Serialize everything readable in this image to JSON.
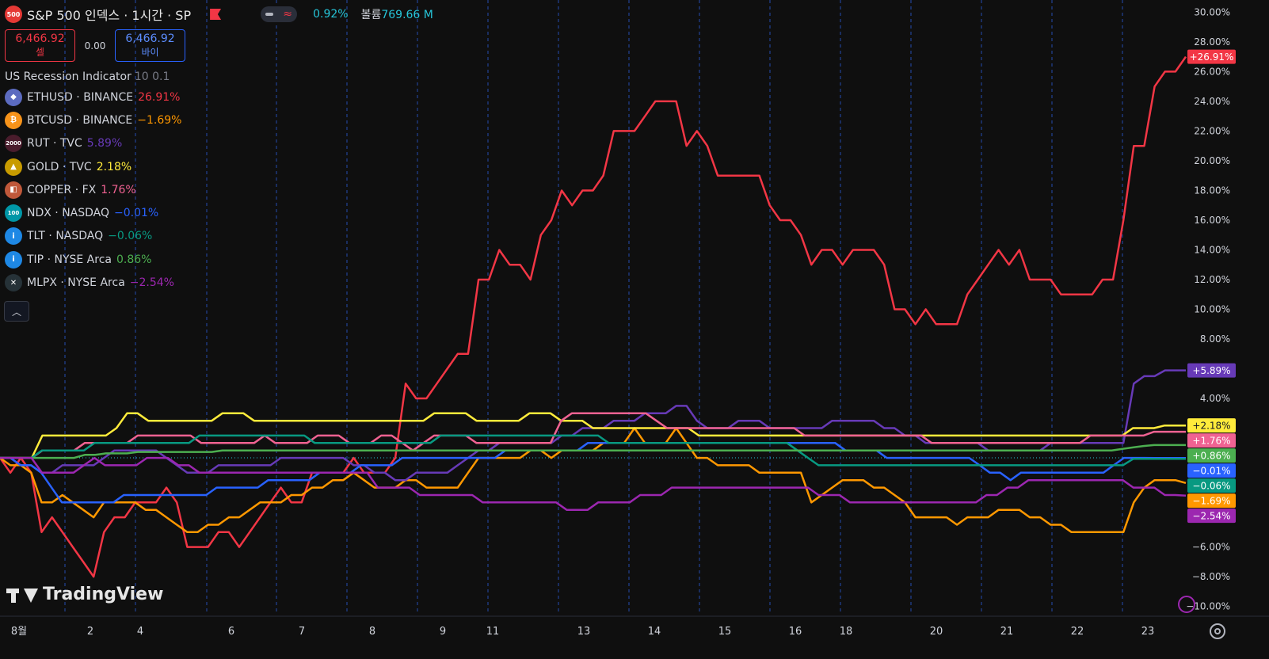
{
  "header": {
    "symbol_badge": "500",
    "title": "S&P 500 인덱스 · 1시간 · SP",
    "change_pct": "0.92%",
    "volume_label": "볼륨",
    "volume_value": "769.66 M"
  },
  "trade": {
    "sell_price": "6,466.92",
    "sell_label": "셀",
    "spread": "0.00",
    "buy_price": "6,466.92",
    "buy_label": "바이"
  },
  "indicator": {
    "name": "US Recession Indicator",
    "params": "10 0.1"
  },
  "logo_text": "TradingView",
  "chart_data": {
    "type": "line",
    "x_ticks": [
      "8월",
      "2",
      "4",
      "6",
      "7",
      "8",
      "9",
      "11",
      "13",
      "14",
      "15",
      "16",
      "18",
      "20",
      "21",
      "22",
      "23"
    ],
    "y_ticks": [
      "30.00%",
      "28.00%",
      "26.00%",
      "24.00%",
      "22.00%",
      "20.00%",
      "18.00%",
      "16.00%",
      "14.00%",
      "12.00%",
      "10.00%",
      "8.00%",
      "4.00%",
      "−6.00%",
      "−8.00%",
      "−10.00%"
    ],
    "ylim": [
      -10.5,
      30.5
    ],
    "y_unit": "%",
    "session_day_count": 17,
    "series": [
      {
        "symbol": "ETHUSD",
        "exchange": "BINANCE",
        "change": "26.91%",
        "badge": "+26.91%",
        "color": "#f23645",
        "icon_color": "#5c6bc0",
        "icon": "ethereum-icon",
        "icon_text": "◆",
        "values": [
          0,
          -1,
          0,
          -1,
          -5,
          -4,
          -5,
          -6,
          -7,
          -8,
          -5,
          -4,
          -4,
          -3,
          -3,
          -3,
          -2,
          -3,
          -6,
          -6,
          -6,
          -5,
          -5,
          -6,
          -5,
          -4,
          -3,
          -2,
          -3,
          -3,
          -1,
          -1,
          -1,
          -1,
          0,
          -1,
          -1,
          -1,
          0,
          5,
          4,
          4,
          5,
          6,
          7,
          7,
          12,
          12,
          14,
          13,
          13,
          12,
          15,
          16,
          18,
          17,
          18,
          18,
          19,
          22,
          22,
          22,
          23,
          24,
          24,
          24,
          21,
          22,
          21,
          19,
          19,
          19,
          19,
          19,
          17,
          16,
          16,
          15,
          13,
          14,
          14,
          13,
          14,
          14,
          14,
          13,
          10,
          10,
          9,
          10,
          9,
          9,
          9,
          11,
          12,
          13,
          14,
          13,
          14,
          12,
          12,
          12,
          11,
          11,
          11,
          11,
          12,
          12,
          16,
          21,
          21,
          25,
          26,
          26,
          27
        ]
      },
      {
        "symbol": "BTCUSD",
        "exchange": "BINANCE",
        "change": "−1.69%",
        "badge": "−1.69%",
        "color": "#ff9800",
        "icon_color": "#f7931a",
        "icon": "bitcoin-icon",
        "icon_text": "₿",
        "values": [
          0,
          -0.5,
          -0.5,
          -1,
          -3,
          -3,
          -2.5,
          -3,
          -3.5,
          -4,
          -3,
          -3,
          -3,
          -3,
          -3.5,
          -3.5,
          -4,
          -4.5,
          -5,
          -5,
          -4.5,
          -4.5,
          -4,
          -4,
          -3.5,
          -3,
          -3,
          -3,
          -2.5,
          -2.5,
          -2,
          -2,
          -1.5,
          -1.5,
          -1,
          -1.5,
          -2,
          -2,
          -2,
          -1.5,
          -1.5,
          -2,
          -2,
          -2,
          -2,
          -1,
          0,
          0,
          0,
          0,
          0,
          0.5,
          0.5,
          0,
          0.5,
          0.5,
          0.5,
          0.5,
          1,
          1,
          1,
          2,
          1,
          1,
          1,
          2,
          1,
          0,
          0,
          -0.5,
          -0.5,
          -0.5,
          -0.5,
          -1,
          -1,
          -1,
          -1,
          -1,
          -3,
          -2.5,
          -2,
          -1.5,
          -1.5,
          -1.5,
          -2,
          -2,
          -2.5,
          -3,
          -4,
          -4,
          -4,
          -4,
          -4.5,
          -4,
          -4,
          -4,
          -3.5,
          -3.5,
          -3.5,
          -4,
          -4,
          -4.5,
          -4.5,
          -5,
          -5,
          -5,
          -5,
          -5,
          -5,
          -3,
          -2,
          -1.5,
          -1.5,
          -1.5,
          -1.69
        ]
      },
      {
        "symbol": "RUT",
        "exchange": "TVC",
        "change": "5.89%",
        "badge": "+5.89%",
        "color": "#673ab7",
        "icon_color": "#4a1c2c",
        "icon": "rut-index-icon",
        "icon_text": "2000",
        "values": [
          0,
          0,
          -0.5,
          -0.5,
          -1,
          -1,
          -0.5,
          -0.5,
          -0.5,
          -0.5,
          0,
          0.5,
          0.5,
          0.5,
          0.5,
          0.5,
          0,
          -0.5,
          -1,
          -1,
          -1,
          -0.5,
          -0.5,
          -0.5,
          -0.5,
          -0.5,
          -0.5,
          0,
          0,
          0,
          0,
          0,
          0,
          0,
          -0.5,
          -0.5,
          -1,
          -1,
          -1.5,
          -1.5,
          -1,
          -1,
          -1,
          -1,
          -0.5,
          0,
          0.5,
          0.5,
          1,
          1,
          1,
          1,
          1,
          1,
          1.5,
          1.5,
          2,
          2,
          2,
          2.5,
          2.5,
          2.5,
          3,
          3,
          3,
          3.5,
          3.5,
          2.5,
          2,
          2,
          2,
          2.5,
          2.5,
          2.5,
          2,
          2,
          2,
          2,
          2,
          2,
          2.5,
          2.5,
          2.5,
          2.5,
          2.5,
          2,
          2,
          1.5,
          1.5,
          1,
          1,
          1,
          1,
          1,
          1,
          0.5,
          0.5,
          0.5,
          0.5,
          0.5,
          0.5,
          1,
          1,
          1,
          1,
          1,
          1,
          1,
          1,
          5,
          5.5,
          5.5,
          5.89,
          5.89,
          5.89
        ]
      },
      {
        "symbol": "GOLD",
        "exchange": "TVC",
        "change": "2.18%",
        "badge": "+2.18%",
        "color": "#ffeb3b",
        "icon_color": "#c89b00",
        "icon": "gold-bars-icon",
        "icon_text": "▲",
        "values": [
          0,
          0,
          0,
          0,
          1.5,
          1.5,
          1.5,
          1.5,
          1.5,
          1.5,
          1.5,
          2,
          3,
          3,
          2.5,
          2.5,
          2.5,
          2.5,
          2.5,
          2.5,
          2.5,
          3,
          3,
          3,
          2.5,
          2.5,
          2.5,
          2.5,
          2.5,
          2.5,
          2.5,
          2.5,
          2.5,
          2.5,
          2.5,
          2.5,
          2.5,
          2.5,
          2.5,
          2.5,
          2.5,
          3,
          3,
          3,
          3,
          2.5,
          2.5,
          2.5,
          2.5,
          2.5,
          3,
          3,
          3,
          2.5,
          2.5,
          2.5,
          2,
          2,
          2,
          2,
          2,
          2,
          2,
          2,
          2,
          2,
          1.5,
          1.5,
          1.5,
          1.5,
          1.5,
          1.5,
          1.5,
          1.5,
          1.5,
          1.5,
          1.5,
          1.5,
          1.5,
          1.5,
          1.5,
          1.5,
          1.5,
          1.5,
          1.5,
          1.5,
          1.5,
          1.5,
          1.5,
          1.5,
          1.5,
          1.5,
          1.5,
          1.5,
          1.5,
          1.5,
          1.5,
          1.5,
          1.5,
          1.5,
          1.5,
          1.5,
          1.5,
          1.5,
          1.5,
          1.5,
          1.5,
          2,
          2,
          2,
          2.18,
          2.18,
          2.18
        ]
      },
      {
        "symbol": "COPPER",
        "exchange": "FX",
        "change": "1.76%",
        "badge": "+1.76%",
        "color": "#f06292",
        "icon_color": "#c0583a",
        "icon": "copper-icon",
        "icon_text": "◧",
        "values": [
          0,
          0,
          0,
          0,
          0.5,
          0.5,
          0.5,
          0.5,
          1,
          1,
          1,
          1,
          1,
          1.5,
          1.5,
          1.5,
          1.5,
          1.5,
          1.5,
          1,
          1,
          1,
          1,
          1,
          1,
          1.5,
          1,
          1,
          1,
          1,
          1.5,
          1.5,
          1.5,
          1,
          1,
          1,
          1.5,
          1.5,
          1,
          0.5,
          1,
          1.5,
          1.5,
          1.5,
          1.5,
          1,
          1,
          1,
          1,
          1,
          1,
          1,
          1,
          2.5,
          3,
          3,
          3,
          3,
          3,
          3,
          3,
          3,
          2.5,
          2,
          2,
          2,
          2,
          2,
          2,
          2,
          2,
          2,
          2,
          2,
          2,
          2,
          1.5,
          1.5,
          1.5,
          1.5,
          1.5,
          1.5,
          1.5,
          1.5,
          1.5,
          1.5,
          1.5,
          1.5,
          1,
          1,
          1,
          1,
          1,
          1,
          1,
          1,
          1,
          1,
          1,
          1,
          1,
          1,
          1,
          1.5,
          1.5,
          1.5,
          1.5,
          1.5,
          1.5,
          1.76,
          1.76,
          1.76,
          1.76
        ]
      },
      {
        "symbol": "NDX",
        "exchange": "NASDAQ",
        "change": "−0.01%",
        "badge": "−0.01%",
        "color": "#2962ff",
        "icon_color": "#0097a7",
        "icon": "nasdaq-100-icon",
        "icon_text": "100",
        "values": [
          0,
          0,
          -0.5,
          -0.5,
          -1,
          -2,
          -3,
          -3,
          -3,
          -3,
          -3,
          -3,
          -2.5,
          -2.5,
          -2.5,
          -2.5,
          -2.5,
          -2.5,
          -2.5,
          -2.5,
          -2.5,
          -2,
          -2,
          -2,
          -2,
          -2,
          -1.5,
          -1.5,
          -1.5,
          -1.5,
          -1.5,
          -1,
          -1,
          -1,
          -1,
          -0.5,
          -0.5,
          -0.5,
          -0.5,
          0,
          0,
          0,
          0,
          0,
          0,
          0,
          0,
          0,
          0,
          0.5,
          0.5,
          0.5,
          0.5,
          0.5,
          0.5,
          0.5,
          0.5,
          1,
          1,
          1,
          1,
          1,
          1,
          1,
          1,
          1,
          1,
          1,
          1,
          1,
          1,
          1,
          1,
          1,
          1,
          1,
          1,
          1,
          1,
          1,
          1,
          1,
          0.5,
          0.5,
          0.5,
          0.5,
          0,
          0,
          0,
          0,
          0,
          0,
          0,
          0,
          0,
          -0.5,
          -1,
          -1,
          -1.5,
          -1,
          -1,
          -1,
          -1,
          -1,
          -1,
          -1,
          -1,
          -1,
          -0.5,
          0,
          0,
          0,
          -0.01,
          -0.01,
          -0.01,
          -0.01
        ]
      },
      {
        "symbol": "TLT",
        "exchange": "NASDAQ",
        "change": "−0.06%",
        "badge": "−0.06%",
        "color": "#089981",
        "icon_color": "#1e88e5",
        "icon": "info-icon",
        "icon_text": "i",
        "values": [
          0,
          0,
          0,
          0,
          0.5,
          0.5,
          0.5,
          0.5,
          0.5,
          1,
          1,
          1,
          1,
          1,
          1,
          1,
          1,
          1,
          1,
          1.5,
          1.5,
          1.5,
          1.5,
          1.5,
          1.5,
          1.5,
          1.5,
          1.5,
          1.5,
          1.5,
          1,
          1,
          1,
          1,
          1,
          1,
          1,
          1,
          1,
          1,
          1,
          1,
          1.5,
          1.5,
          1.5,
          1.5,
          1.5,
          1.5,
          1.5,
          1.5,
          1.5,
          1.5,
          1.5,
          1.5,
          1.5,
          1.5,
          1.5,
          1.5,
          1,
          1,
          1,
          1,
          1,
          1,
          1,
          1,
          1,
          1,
          1,
          1,
          1,
          1,
          1,
          1,
          1,
          1,
          0.5,
          0,
          -0.5,
          -0.5,
          -0.5,
          -0.5,
          -0.5,
          -0.5,
          -0.5,
          -0.5,
          -0.5,
          -0.5,
          -0.5,
          -0.5,
          -0.5,
          -0.5,
          -0.5,
          -0.5,
          -0.5,
          -0.5,
          -0.5,
          -0.5,
          -0.5,
          -0.5,
          -0.5,
          -0.5,
          -0.5,
          -0.5,
          -0.5,
          -0.5,
          -0.5,
          -0.5,
          -0.06,
          -0.06,
          -0.06,
          -0.06,
          -0.06,
          -0.06
        ]
      },
      {
        "symbol": "TIP",
        "exchange": "NYSE Arca",
        "change": "0.86%",
        "badge": "+0.86%",
        "color": "#4caf50",
        "icon_color": "#1e88e5",
        "icon": "info-icon",
        "icon_text": "i",
        "values": [
          0,
          0,
          0,
          0,
          0,
          0,
          0,
          0,
          0.2,
          0.2,
          0.3,
          0.3,
          0.3,
          0.4,
          0.4,
          0.4,
          0.4,
          0.4,
          0.4,
          0.4,
          0.4,
          0.5,
          0.5,
          0.5,
          0.5,
          0.5,
          0.5,
          0.5,
          0.5,
          0.5,
          0.5,
          0.5,
          0.5,
          0.5,
          0.5,
          0.5,
          0.5,
          0.5,
          0.5,
          0.5,
          0.5,
          0.5,
          0.5,
          0.5,
          0.5,
          0.5,
          0.5,
          0.5,
          0.5,
          0.5,
          0.5,
          0.5,
          0.5,
          0.5,
          0.5,
          0.5,
          0.5,
          0.5,
          0.5,
          0.5,
          0.5,
          0.5,
          0.5,
          0.5,
          0.5,
          0.5,
          0.5,
          0.5,
          0.5,
          0.5,
          0.5,
          0.5,
          0.5,
          0.5,
          0.5,
          0.5,
          0.5,
          0.5,
          0.5,
          0.5,
          0.5,
          0.5,
          0.5,
          0.5,
          0.5,
          0.5,
          0.5,
          0.5,
          0.5,
          0.5,
          0.5,
          0.5,
          0.5,
          0.5,
          0.5,
          0.5,
          0.5,
          0.5,
          0.5,
          0.5,
          0.5,
          0.5,
          0.5,
          0.5,
          0.5,
          0.5,
          0.6,
          0.7,
          0.8,
          0.86,
          0.86,
          0.86,
          0.86
        ]
      },
      {
        "symbol": "MLPX",
        "exchange": "NYSE Arca",
        "change": "−2.54%",
        "badge": "−2.54%",
        "color": "#9c27b0",
        "icon_color": "#263238",
        "icon": "mlpx-icon",
        "icon_text": "✕",
        "values": [
          0,
          0,
          0,
          0,
          -1,
          -1,
          -1,
          -1,
          -0.5,
          0,
          -0.5,
          -0.5,
          -0.5,
          -0.5,
          0,
          0,
          0,
          -0.5,
          -0.5,
          -1,
          -1,
          -1,
          -1,
          -1,
          -1,
          -1,
          -1,
          -1,
          -1,
          -1,
          -1,
          -1,
          -1,
          -1,
          -1,
          -1,
          -2,
          -2,
          -2,
          -2,
          -2.5,
          -2.5,
          -2.5,
          -2.5,
          -2.5,
          -2.5,
          -3,
          -3,
          -3,
          -3,
          -3,
          -3,
          -3,
          -3,
          -3.5,
          -3.5,
          -3.5,
          -3,
          -3,
          -3,
          -3,
          -2.5,
          -2.5,
          -2.5,
          -2,
          -2,
          -2,
          -2,
          -2,
          -2,
          -2,
          -2,
          -2,
          -2,
          -2,
          -2,
          -2,
          -2,
          -2.5,
          -2.5,
          -2.5,
          -3,
          -3,
          -3,
          -3,
          -3,
          -3,
          -3,
          -3,
          -3,
          -3,
          -3,
          -3,
          -3,
          -2.5,
          -2.5,
          -2,
          -2,
          -1.5,
          -1.5,
          -1.5,
          -1.5,
          -1.5,
          -1.5,
          -1.5,
          -1.5,
          -1.5,
          -1.5,
          -2,
          -2,
          -2,
          -2.5,
          -2.5,
          -2.54
        ]
      }
    ]
  }
}
